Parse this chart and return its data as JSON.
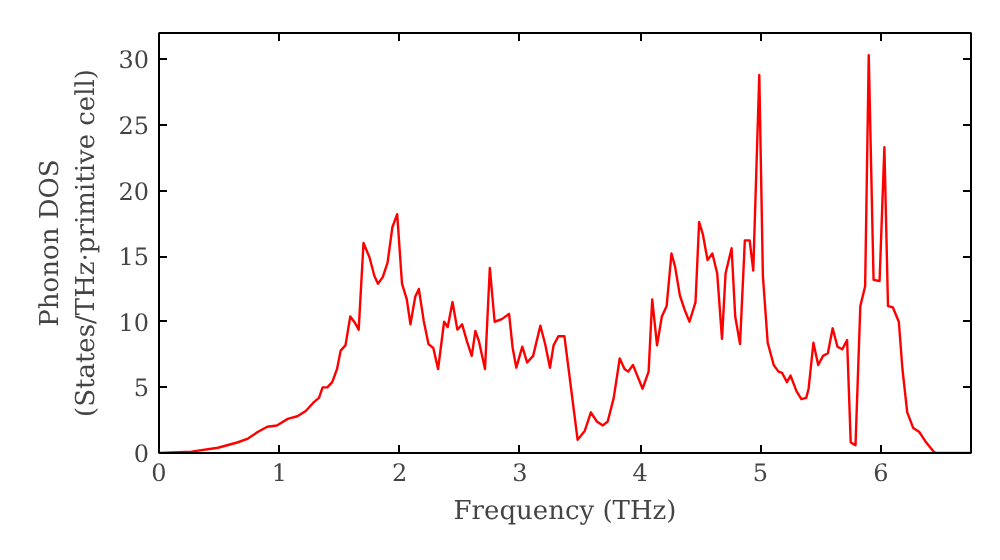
{
  "chart_data": {
    "type": "line",
    "xlabel": "Frequency (THz)",
    "ylabel": "Phonon DOS\n(States/THz·primitive cell)",
    "xlim": [
      0,
      6.75
    ],
    "ylim": [
      0,
      32
    ],
    "xticks": [
      0,
      1,
      2,
      3,
      4,
      5,
      6
    ],
    "yticks": [
      0,
      5,
      10,
      15,
      20,
      25,
      30
    ],
    "grid": false,
    "marker": "none",
    "line_style": "solid",
    "series": [
      {
        "color": "#ff0000",
        "x": [
          0,
          0.27,
          0.49,
          0.65,
          0.74,
          0.82,
          0.9,
          0.98,
          1.07,
          1.15,
          1.22,
          1.29,
          1.33,
          1.36,
          1.4,
          1.44,
          1.48,
          1.51,
          1.55,
          1.59,
          1.63,
          1.66,
          1.7,
          1.75,
          1.79,
          1.82,
          1.86,
          1.9,
          1.94,
          1.98,
          2.02,
          2.06,
          2.09,
          2.13,
          2.16,
          2.2,
          2.24,
          2.28,
          2.32,
          2.37,
          2.4,
          2.44,
          2.48,
          2.52,
          2.56,
          2.6,
          2.63,
          2.66,
          2.71,
          2.75,
          2.79,
          2.85,
          2.91,
          2.94,
          2.97,
          3.02,
          3.06,
          3.11,
          3.17,
          3.21,
          3.25,
          3.28,
          3.32,
          3.37,
          3.48,
          3.54,
          3.59,
          3.64,
          3.69,
          3.73,
          3.78,
          3.83,
          3.87,
          3.9,
          3.94,
          3.98,
          4.02,
          4.07,
          4.1,
          4.14,
          4.18,
          4.22,
          4.26,
          4.29,
          4.33,
          4.37,
          4.41,
          4.46,
          4.49,
          4.52,
          4.56,
          4.6,
          4.64,
          4.68,
          4.71,
          4.76,
          4.79,
          4.83,
          4.87,
          4.91,
          4.94,
          4.99,
          5.02,
          5.06,
          5.11,
          5.15,
          5.18,
          5.22,
          5.25,
          5.3,
          5.34,
          5.38,
          5.4,
          5.44,
          5.48,
          5.52,
          5.56,
          5.6,
          5.64,
          5.68,
          5.72,
          5.75,
          5.79,
          5.83,
          5.87,
          5.9,
          5.94,
          5.99,
          6.03,
          6.06,
          6.1,
          6.15,
          6.18,
          6.22,
          6.27,
          6.32,
          6.37,
          6.44,
          6.46,
          6.75
        ],
        "values": [
          0,
          0.1,
          0.4,
          0.8,
          1.1,
          1.6,
          2.0,
          2.1,
          2.6,
          2.8,
          3.2,
          3.9,
          4.2,
          5.0,
          5.0,
          5.4,
          6.4,
          7.8,
          8.2,
          10.4,
          9.9,
          9.4,
          16.0,
          14.9,
          13.5,
          12.9,
          13.4,
          14.5,
          17.2,
          18.2,
          12.9,
          11.7,
          9.8,
          11.9,
          12.5,
          10.1,
          8.3,
          8.0,
          6.4,
          10.0,
          9.6,
          11.5,
          9.4,
          9.8,
          8.5,
          7.4,
          9.3,
          8.5,
          6.4,
          14.1,
          10.0,
          10.2,
          10.6,
          8.0,
          6.5,
          8.1,
          6.9,
          7.4,
          9.7,
          8.3,
          6.5,
          8.2,
          8.9,
          8.9,
          1.0,
          1.7,
          3.1,
          2.4,
          2.1,
          2.4,
          4.2,
          7.2,
          6.4,
          6.2,
          6.7,
          5.8,
          4.9,
          6.2,
          11.7,
          8.2,
          10.4,
          11.2,
          15.2,
          14.2,
          12.0,
          10.9,
          10.0,
          11.5,
          17.6,
          16.7,
          14.7,
          15.2,
          13.7,
          8.7,
          13.7,
          15.6,
          10.4,
          8.3,
          16.2,
          16.2,
          13.9,
          28.8,
          13.5,
          8.4,
          6.7,
          6.2,
          6.1,
          5.4,
          5.9,
          4.7,
          4.1,
          4.2,
          4.9,
          8.4,
          6.7,
          7.4,
          7.6,
          9.5,
          8.1,
          7.9,
          8.6,
          0.8,
          0.6,
          11.2,
          12.7,
          30.3,
          13.2,
          13.1,
          23.3,
          11.2,
          11.1,
          10.0,
          6.4,
          3.1,
          1.9,
          1.6,
          0.9,
          0.1,
          0,
          0
        ]
      }
    ]
  }
}
